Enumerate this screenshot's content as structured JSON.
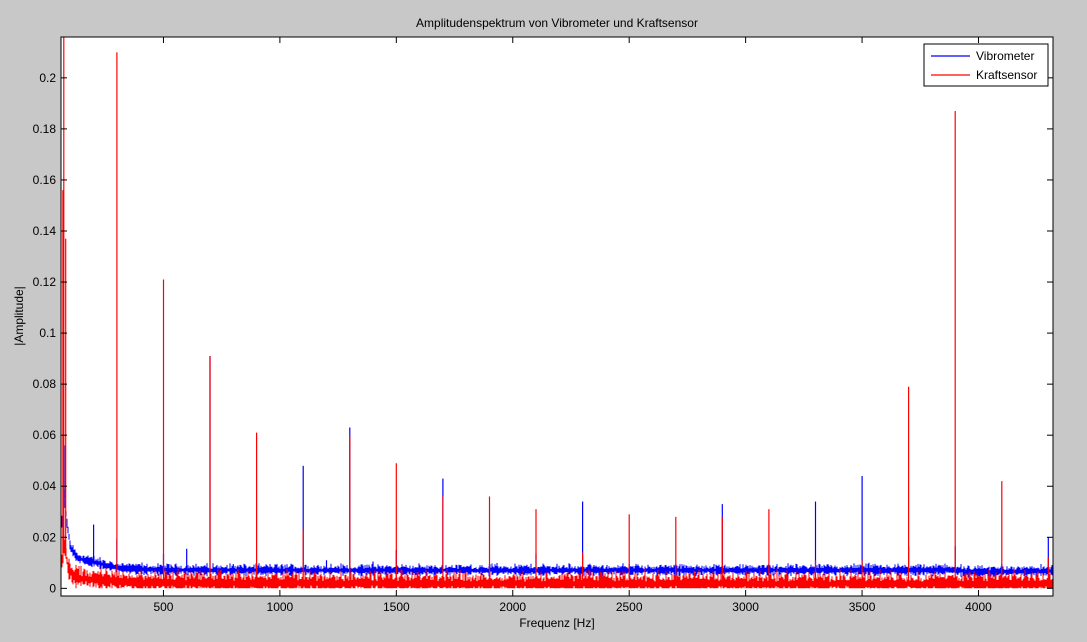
{
  "chart_data": {
    "type": "line",
    "title": "Amplitudenspektrum von Vibrometer und Kraftsensor",
    "xlabel": "Frequenz [Hz]",
    "ylabel": "|Amplitude|",
    "xlim": [
      60,
      4320
    ],
    "ylim": [
      -0.003,
      0.216
    ],
    "x_ticks": [
      500,
      1000,
      1500,
      2000,
      2500,
      3000,
      3500,
      4000
    ],
    "x_tick_labels": [
      "500",
      "1000",
      "1500",
      "2000",
      "2500",
      "3000",
      "3500",
      "4000"
    ],
    "y_ticks": [
      0,
      0.02,
      0.04,
      0.06,
      0.08,
      0.1,
      0.12,
      0.14,
      0.16,
      0.18,
      0.2
    ],
    "y_tick_labels": [
      "0",
      "0.02",
      "0.04",
      "0.06",
      "0.08",
      "0.1",
      "0.12",
      "0.14",
      "0.16",
      "0.18",
      "0.2"
    ],
    "grid": false,
    "legend_position": "top-right",
    "series": [
      {
        "name": "Vibrometer",
        "color": "#0000ff",
        "baseline": [
          [
            60,
            0.002
          ],
          [
            65,
            0.03
          ],
          [
            70,
            0.04
          ],
          [
            80,
            0.03
          ],
          [
            100,
            0.016
          ],
          [
            130,
            0.012
          ],
          [
            160,
            0.011
          ],
          [
            200,
            0.0105
          ],
          [
            250,
            0.009
          ],
          [
            300,
            0.008
          ],
          [
            400,
            0.0075
          ],
          [
            500,
            0.0072
          ],
          [
            1000,
            0.0071
          ],
          [
            2000,
            0.0071
          ],
          [
            3000,
            0.0071
          ],
          [
            3900,
            0.0072
          ],
          [
            3950,
            0.0065
          ],
          [
            4320,
            0.0068
          ]
        ],
        "noise": 0.0007,
        "peaks": [
          [
            70,
            0.066
          ],
          [
            78,
            0.056
          ],
          [
            200,
            0.025
          ],
          [
            300,
            0.0195
          ],
          [
            500,
            0.0135
          ],
          [
            600,
            0.0155
          ],
          [
            700,
            0.091
          ],
          [
            800,
            0.0095
          ],
          [
            900,
            0.0095
          ],
          [
            1100,
            0.048
          ],
          [
            1200,
            0.011
          ],
          [
            1300,
            0.063
          ],
          [
            1400,
            0.0105
          ],
          [
            1500,
            0.015
          ],
          [
            1700,
            0.043
          ],
          [
            1900,
            0.0095
          ],
          [
            2100,
            0.0135
          ],
          [
            2300,
            0.034
          ],
          [
            2500,
            0.0095
          ],
          [
            2700,
            0.0095
          ],
          [
            2900,
            0.033
          ],
          [
            3100,
            0.0095
          ],
          [
            3300,
            0.034
          ],
          [
            3500,
            0.044
          ],
          [
            3700,
            0.0165
          ],
          [
            3900,
            0.0165
          ],
          [
            4100,
            0.0095
          ],
          [
            4300,
            0.02
          ]
        ]
      },
      {
        "name": "Kraftsensor",
        "color": "#ff0000",
        "baseline": [
          [
            60,
            0.005
          ],
          [
            65,
            0.012
          ],
          [
            75,
            0.018
          ],
          [
            90,
            0.008
          ],
          [
            110,
            0.005
          ],
          [
            150,
            0.004
          ],
          [
            250,
            0.003
          ],
          [
            400,
            0.0022
          ],
          [
            1000,
            0.002
          ],
          [
            2000,
            0.0018
          ],
          [
            3000,
            0.0018
          ],
          [
            4320,
            0.0018
          ]
        ],
        "noise": 0.0014,
        "peaks": [
          [
            68,
            0.156
          ],
          [
            72,
            0.216
          ],
          [
            80,
            0.137
          ],
          [
            300,
            0.21
          ],
          [
            500,
            0.121
          ],
          [
            700,
            0.091
          ],
          [
            900,
            0.061
          ],
          [
            1100,
            0.023
          ],
          [
            1300,
            0.06
          ],
          [
            1500,
            0.049
          ],
          [
            1700,
            0.036
          ],
          [
            1900,
            0.036
          ],
          [
            2100,
            0.031
          ],
          [
            2300,
            0.014
          ],
          [
            2500,
            0.029
          ],
          [
            2700,
            0.028
          ],
          [
            2900,
            0.028
          ],
          [
            3100,
            0.031
          ],
          [
            3300,
            0.011
          ],
          [
            3500,
            0.011
          ],
          [
            3700,
            0.079
          ],
          [
            3900,
            0.187
          ],
          [
            4100,
            0.042
          ],
          [
            4300,
            0.012
          ]
        ]
      }
    ]
  }
}
